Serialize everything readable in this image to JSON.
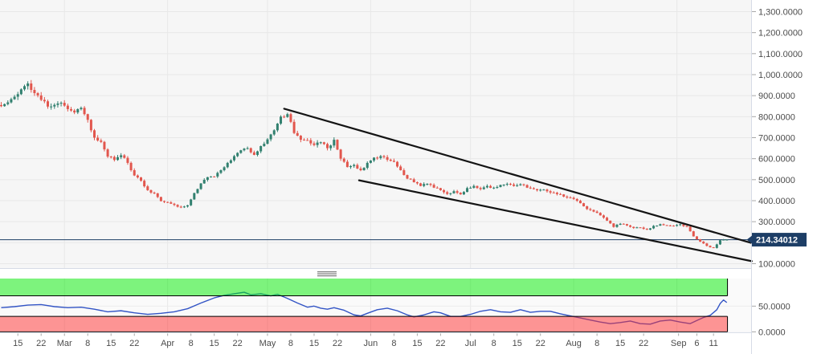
{
  "chart_data": {
    "type": "candlestick",
    "description": "Daily candlestick price chart (falling wedge, Feb-Sep) with horizontal current-price line, two black converging trendlines, and a lower RSI-style oscillator panel with green overbought band (above 70) and red oversold band (below 30).",
    "colors": {
      "background_main": "#f6f6f6",
      "background_sub": "#fafafa",
      "grid": "#e8e8e8",
      "grid_sub": "#ececec",
      "up": "#31806f",
      "down": "#e2564d",
      "trendline": "#141414",
      "rsi_line": "#3254c5",
      "band_green": "rgba(0,235,0,0.50)",
      "band_red": "rgba(255,45,45,0.50)",
      "band_edge": "#000000",
      "price_line": "#1d3e66",
      "label_bg": "#1d3e66",
      "label_text": "#ffffff",
      "axis_text": "#4c4c4c",
      "pane_border": "#d6dbe6",
      "tick_mark": "#a8a8a8",
      "handle": "#7d7d7d"
    },
    "price_label": {
      "text": "214.34012",
      "value": 214.34012
    },
    "price_line": {
      "value": 214.34012
    },
    "y_axis": {
      "main_ticks": [
        {
          "label": "1,300.0000",
          "value": 1300
        },
        {
          "label": "1,200.0000",
          "value": 1200
        },
        {
          "label": "1,100.0000",
          "value": 1100
        },
        {
          "label": "1,000.0000",
          "value": 1000
        },
        {
          "label": "900.0000",
          "value": 900
        },
        {
          "label": "800.0000",
          "value": 800
        },
        {
          "label": "700.0000",
          "value": 700
        },
        {
          "label": "600.0000",
          "value": 600
        },
        {
          "label": "500.0000",
          "value": 500
        },
        {
          "label": "400.0000",
          "value": 400
        },
        {
          "label": "300.0000",
          "value": 300
        },
        {
          "label": "100.0000",
          "value": 100
        }
      ],
      "sub_ticks": [
        {
          "label": "50.0000",
          "value": 50
        },
        {
          "label": "0.0000",
          "value": 0
        }
      ]
    },
    "x_axis": {
      "labels": [
        {
          "label": "15",
          "day": 5
        },
        {
          "label": "22",
          "day": 12
        },
        {
          "label": "Mar",
          "day": 19
        },
        {
          "label": "8",
          "day": 26
        },
        {
          "label": "15",
          "day": 33
        },
        {
          "label": "22",
          "day": 40
        },
        {
          "label": "Apr",
          "day": 50
        },
        {
          "label": "8",
          "day": 57
        },
        {
          "label": "15",
          "day": 64
        },
        {
          "label": "22",
          "day": 71
        },
        {
          "label": "May",
          "day": 80
        },
        {
          "label": "8",
          "day": 87
        },
        {
          "label": "15",
          "day": 94
        },
        {
          "label": "22",
          "day": 101
        },
        {
          "label": "Jun",
          "day": 111
        },
        {
          "label": "8",
          "day": 118
        },
        {
          "label": "15",
          "day": 125
        },
        {
          "label": "22",
          "day": 132
        },
        {
          "label": "Jul",
          "day": 141
        },
        {
          "label": "8",
          "day": 148
        },
        {
          "label": "15",
          "day": 155
        },
        {
          "label": "22",
          "day": 162
        },
        {
          "label": "Aug",
          "day": 172
        },
        {
          "label": "8",
          "day": 179
        },
        {
          "label": "15",
          "day": 186
        },
        {
          "label": "22",
          "day": 193
        },
        {
          "label": "Sep",
          "day": 203.5
        },
        {
          "label": "6",
          "day": 209
        },
        {
          "label": "11",
          "day": 214
        }
      ]
    },
    "grid": {
      "h_values": [
        100,
        200,
        300,
        400,
        500,
        600,
        700,
        800,
        900,
        1000,
        1100,
        1200,
        1300
      ],
      "month_days": [
        19,
        50,
        80,
        111,
        141,
        172,
        203
      ],
      "sub_h_values": [
        50
      ]
    },
    "candles": {
      "note": "Estimated closes sampled every 2 days, day 0 = left edge (mid-Feb) to day 218 (mid-Sep); intermediate days interpolated.",
      "day_step": 2,
      "closes": [
        850,
        868,
        895,
        930,
        958,
        912,
        880,
        848,
        856,
        866,
        836,
        820,
        842,
        785,
        700,
        680,
        610,
        594,
        616,
        580,
        520,
        495,
        450,
        435,
        398,
        392,
        380,
        370,
        378,
        436,
        482,
        512,
        515,
        545,
        580,
        612,
        640,
        650,
        618,
        660,
        692,
        735,
        800,
        812,
        722,
        690,
        688,
        665,
        678,
        650,
        690,
        600,
        560,
        570,
        545,
        580,
        605,
        612,
        595,
        585,
        545,
        505,
        488,
        470,
        480,
        462,
        450,
        432,
        445,
        430,
        460,
        470,
        455,
        470,
        462,
        475,
        480,
        470,
        478,
        462,
        455,
        452,
        445,
        438,
        430,
        415,
        408,
        388,
        360,
        348,
        330,
        305,
        275,
        290,
        282,
        270,
        272,
        262,
        280,
        288,
        282,
        280,
        288,
        276,
        230,
        205,
        185,
        175,
        212,
        214.34
      ]
    },
    "trendlines": [
      {
        "from_day": 85,
        "from_price": 838,
        "to_day": 225.5,
        "to_price": 198
      },
      {
        "from_day": 107.5,
        "from_price": 497,
        "to_day": 225.5,
        "to_price": 112
      }
    ],
    "rsi": {
      "bands": {
        "overbought_level": 70,
        "oversold_level": 30,
        "band_end_day": 218.2
      },
      "points": [
        [
          0,
          47
        ],
        [
          4,
          49
        ],
        [
          8,
          52
        ],
        [
          12,
          53
        ],
        [
          16,
          49
        ],
        [
          20,
          47
        ],
        [
          24,
          48
        ],
        [
          28,
          44
        ],
        [
          32,
          39
        ],
        [
          36,
          41
        ],
        [
          40,
          37
        ],
        [
          44,
          34
        ],
        [
          48,
          36
        ],
        [
          52,
          39
        ],
        [
          56,
          45
        ],
        [
          60,
          56
        ],
        [
          64,
          66
        ],
        [
          67,
          71
        ],
        [
          70,
          74
        ],
        [
          73,
          77
        ],
        [
          75,
          72
        ],
        [
          78,
          74
        ],
        [
          81,
          70
        ],
        [
          83,
          73
        ],
        [
          86,
          65
        ],
        [
          89,
          56
        ],
        [
          92,
          48
        ],
        [
          94,
          50
        ],
        [
          96,
          46
        ],
        [
          98,
          44
        ],
        [
          100,
          47
        ],
        [
          103,
          42
        ],
        [
          106,
          33
        ],
        [
          108,
          31
        ],
        [
          110,
          36
        ],
        [
          113,
          43
        ],
        [
          116,
          46
        ],
        [
          119,
          41
        ],
        [
          122,
          33
        ],
        [
          124,
          29
        ],
        [
          127,
          33
        ],
        [
          130,
          39
        ],
        [
          132,
          37
        ],
        [
          135,
          30
        ],
        [
          138,
          30
        ],
        [
          141,
          34
        ],
        [
          144,
          40
        ],
        [
          147,
          43
        ],
        [
          150,
          39
        ],
        [
          153,
          38
        ],
        [
          156,
          43
        ],
        [
          159,
          38
        ],
        [
          162,
          40
        ],
        [
          165,
          40
        ],
        [
          168,
          35
        ],
        [
          171,
          31
        ],
        [
          174,
          27
        ],
        [
          177,
          23
        ],
        [
          180,
          19
        ],
        [
          183,
          16
        ],
        [
          186,
          18
        ],
        [
          189,
          21
        ],
        [
          192,
          16
        ],
        [
          195,
          15
        ],
        [
          198,
          21
        ],
        [
          201,
          23
        ],
        [
          204,
          19
        ],
        [
          207,
          16
        ],
        [
          209,
          22
        ],
        [
          211,
          28
        ],
        [
          213,
          32
        ],
        [
          215,
          43
        ],
        [
          216,
          55
        ],
        [
          217,
          62
        ],
        [
          218,
          57
        ]
      ]
    }
  }
}
